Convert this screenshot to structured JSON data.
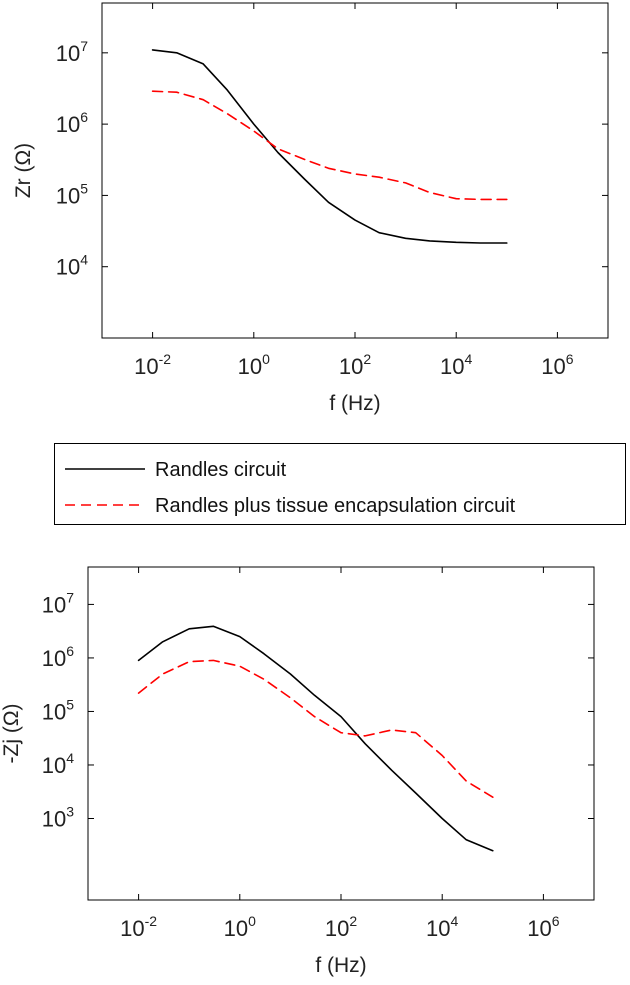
{
  "chart_data": [
    {
      "type": "line",
      "log_x": true,
      "log_y": true,
      "xlabel": "f (Hz)",
      "ylabel": "Zr (Ω)",
      "xlim": [
        0.001,
        10000000
      ],
      "ylim": [
        1000,
        50000000
      ],
      "xticks": [
        {
          "base": "10",
          "exp": "-2",
          "value": 0.01
        },
        {
          "base": "10",
          "exp": "0",
          "value": 1
        },
        {
          "base": "10",
          "exp": "2",
          "value": 100
        },
        {
          "base": "10",
          "exp": "4",
          "value": 10000
        },
        {
          "base": "10",
          "exp": "6",
          "value": 1000000
        }
      ],
      "yticks": [
        {
          "base": "10",
          "exp": "4",
          "value": 10000
        },
        {
          "base": "10",
          "exp": "5",
          "value": 100000
        },
        {
          "base": "10",
          "exp": "6",
          "value": 1000000
        },
        {
          "base": "10",
          "exp": "7",
          "value": 10000000
        }
      ],
      "series": [
        {
          "name": "Randles circuit",
          "color": "#000000",
          "dash": "solid",
          "x": [
            0.01,
            0.03,
            0.1,
            0.3,
            1,
            3,
            10,
            30,
            100,
            300,
            1000,
            3000,
            10000,
            30000,
            100000
          ],
          "y": [
            11000000,
            10000000,
            7000000,
            3000000,
            1000000,
            400000,
            170000,
            80000,
            45000,
            30000,
            25000,
            23000,
            22000,
            21500,
            21500
          ]
        },
        {
          "name": "Randles plus tissue encapsulation circuit",
          "color": "#ff0000",
          "dash": "dashed",
          "x": [
            0.01,
            0.03,
            0.1,
            0.3,
            1,
            3,
            10,
            30,
            100,
            300,
            1000,
            3000,
            10000,
            30000,
            100000
          ],
          "y": [
            2900000,
            2800000,
            2200000,
            1400000,
            800000,
            450000,
            320000,
            240000,
            200000,
            180000,
            150000,
            110000,
            90000,
            88000,
            88000
          ]
        }
      ]
    },
    {
      "type": "line",
      "log_x": true,
      "log_y": true,
      "xlabel": "f (Hz)",
      "ylabel": "-Zj (Ω)",
      "xlim": [
        0.001,
        10000000
      ],
      "ylim": [
        30,
        50000000
      ],
      "xticks": [
        {
          "base": "10",
          "exp": "-2",
          "value": 0.01
        },
        {
          "base": "10",
          "exp": "0",
          "value": 1
        },
        {
          "base": "10",
          "exp": "2",
          "value": 100
        },
        {
          "base": "10",
          "exp": "4",
          "value": 10000
        },
        {
          "base": "10",
          "exp": "6",
          "value": 1000000
        }
      ],
      "yticks": [
        {
          "base": "10",
          "exp": "3",
          "value": 1000
        },
        {
          "base": "10",
          "exp": "4",
          "value": 10000
        },
        {
          "base": "10",
          "exp": "5",
          "value": 100000
        },
        {
          "base": "10",
          "exp": "6",
          "value": 1000000
        },
        {
          "base": "10",
          "exp": "7",
          "value": 10000000
        }
      ],
      "series": [
        {
          "name": "Randles circuit",
          "color": "#000000",
          "dash": "solid",
          "x": [
            0.01,
            0.03,
            0.1,
            0.3,
            1,
            3,
            10,
            30,
            100,
            300,
            1000,
            3000,
            10000,
            30000,
            100000
          ],
          "y": [
            900000,
            2000000,
            3500000,
            3900000,
            2500000,
            1200000,
            500000,
            200000,
            80000,
            25000,
            8000,
            3000,
            1000,
            400,
            250
          ]
        },
        {
          "name": "Randles plus tissue encapsulation circuit",
          "color": "#ff0000",
          "dash": "dashed",
          "x": [
            0.01,
            0.03,
            0.1,
            0.3,
            1,
            3,
            10,
            30,
            100,
            300,
            1000,
            3000,
            10000,
            30000,
            100000
          ],
          "y": [
            220000,
            500000,
            850000,
            900000,
            700000,
            400000,
            180000,
            80000,
            40000,
            35000,
            45000,
            40000,
            15000,
            5000,
            2500
          ]
        }
      ]
    }
  ],
  "legend": {
    "items": [
      {
        "label": "Randles circuit",
        "color": "#000000",
        "dash": "solid"
      },
      {
        "label": "Randles plus tissue encapsulation circuit",
        "color": "#ff0000",
        "dash": "dashed"
      }
    ]
  }
}
